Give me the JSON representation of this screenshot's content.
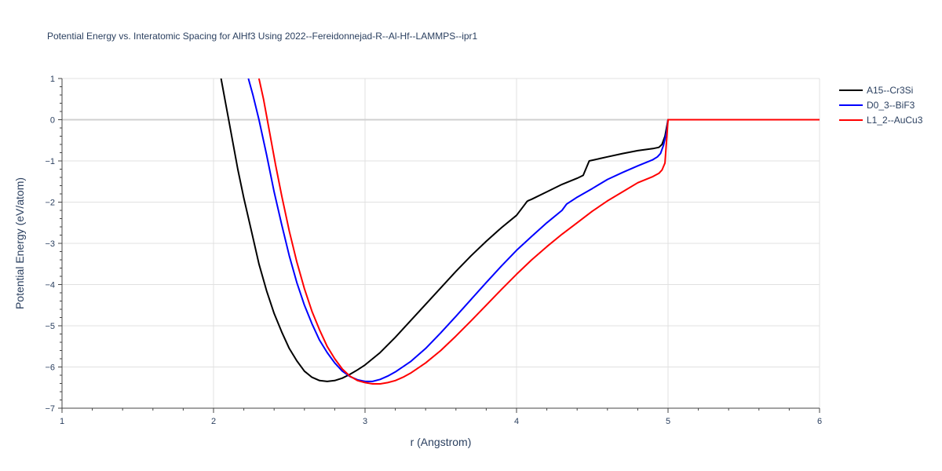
{
  "chart_data": {
    "type": "line",
    "title": "Potential Energy vs. Interatomic Spacing for AlHf3 Using 2022--Fereidonnejad-R--Al-Hf--LAMMPS--ipr1",
    "xlabel": "r (Angstrom)",
    "ylabel": "Potential Energy (eV/atom)",
    "xlim": [
      1,
      6
    ],
    "ylim": [
      -7,
      1
    ],
    "xticks": [
      "1",
      "2",
      "3",
      "4",
      "5",
      "6"
    ],
    "yticks": [
      "1",
      "0",
      "−1",
      "−2",
      "−3",
      "−4",
      "−5",
      "−6",
      "−7"
    ],
    "grid": true,
    "legend_position": "top-right",
    "series": [
      {
        "name": "A15--Cr3Si",
        "color": "#000000",
        "x": [
          2.05,
          2.08,
          2.1,
          2.13,
          2.16,
          2.2,
          2.25,
          2.3,
          2.35,
          2.4,
          2.45,
          2.5,
          2.55,
          2.6,
          2.65,
          2.7,
          2.75,
          2.8,
          2.85,
          2.9,
          2.95,
          3.0,
          3.1,
          3.2,
          3.3,
          3.4,
          3.5,
          3.6,
          3.7,
          3.8,
          3.9,
          4.0,
          4.05,
          4.07,
          4.08,
          4.1,
          4.2,
          4.3,
          4.4,
          4.44,
          4.48,
          4.6,
          4.7,
          4.8,
          4.9,
          4.94,
          4.96,
          4.98,
          5.0,
          5.5,
          6.0
        ],
        "values": [
          1.0,
          0.4,
          0.0,
          -0.6,
          -1.2,
          -1.9,
          -2.7,
          -3.5,
          -4.15,
          -4.7,
          -5.15,
          -5.55,
          -5.85,
          -6.1,
          -6.25,
          -6.33,
          -6.35,
          -6.33,
          -6.27,
          -6.18,
          -6.07,
          -5.95,
          -5.65,
          -5.28,
          -4.88,
          -4.48,
          -4.08,
          -3.68,
          -3.3,
          -2.95,
          -2.62,
          -2.32,
          -2.08,
          -1.98,
          -1.96,
          -1.93,
          -1.75,
          -1.57,
          -1.42,
          -1.35,
          -1.0,
          -0.9,
          -0.82,
          -0.75,
          -0.7,
          -0.67,
          -0.6,
          -0.4,
          0.0,
          0.0,
          0.0
        ]
      },
      {
        "name": "D0_3--BiF3",
        "color": "#0000ff",
        "x": [
          2.23,
          2.26,
          2.3,
          2.35,
          2.4,
          2.45,
          2.5,
          2.55,
          2.6,
          2.65,
          2.7,
          2.75,
          2.8,
          2.85,
          2.9,
          2.95,
          3.0,
          3.05,
          3.1,
          3.15,
          3.2,
          3.3,
          3.4,
          3.5,
          3.6,
          3.7,
          3.8,
          3.9,
          4.0,
          4.1,
          4.2,
          4.3,
          4.33,
          4.4,
          4.5,
          4.6,
          4.7,
          4.8,
          4.9,
          4.93,
          4.95,
          4.97,
          4.99,
          5.0,
          5.5,
          6.0
        ],
        "values": [
          1.0,
          0.6,
          0.0,
          -0.85,
          -1.75,
          -2.55,
          -3.3,
          -3.95,
          -4.5,
          -4.95,
          -5.35,
          -5.65,
          -5.9,
          -6.1,
          -6.23,
          -6.31,
          -6.35,
          -6.35,
          -6.3,
          -6.22,
          -6.12,
          -5.87,
          -5.55,
          -5.17,
          -4.77,
          -4.36,
          -3.95,
          -3.55,
          -3.17,
          -2.83,
          -2.5,
          -2.2,
          -2.05,
          -1.88,
          -1.67,
          -1.45,
          -1.28,
          -1.12,
          -0.97,
          -0.9,
          -0.82,
          -0.62,
          -0.3,
          0.0,
          0.0,
          0.0
        ]
      },
      {
        "name": "L1_2--AuCu3",
        "color": "#ff0000",
        "x": [
          2.3,
          2.33,
          2.37,
          2.41,
          2.45,
          2.5,
          2.55,
          2.6,
          2.65,
          2.7,
          2.75,
          2.8,
          2.85,
          2.9,
          2.95,
          3.0,
          3.05,
          3.1,
          3.15,
          3.2,
          3.25,
          3.3,
          3.4,
          3.5,
          3.6,
          3.7,
          3.8,
          3.9,
          4.0,
          4.1,
          4.2,
          4.3,
          4.4,
          4.5,
          4.6,
          4.7,
          4.8,
          4.9,
          4.94,
          4.96,
          4.98,
          5.0,
          5.5,
          6.0
        ],
        "values": [
          1.0,
          0.5,
          -0.3,
          -1.1,
          -1.85,
          -2.7,
          -3.45,
          -4.1,
          -4.65,
          -5.1,
          -5.5,
          -5.8,
          -6.05,
          -6.22,
          -6.33,
          -6.38,
          -6.41,
          -6.41,
          -6.38,
          -6.33,
          -6.25,
          -6.15,
          -5.9,
          -5.6,
          -5.25,
          -4.88,
          -4.5,
          -4.12,
          -3.75,
          -3.4,
          -3.08,
          -2.78,
          -2.5,
          -2.22,
          -1.97,
          -1.75,
          -1.53,
          -1.38,
          -1.3,
          -1.22,
          -1.05,
          0.0,
          0.0,
          0.0
        ]
      }
    ]
  }
}
